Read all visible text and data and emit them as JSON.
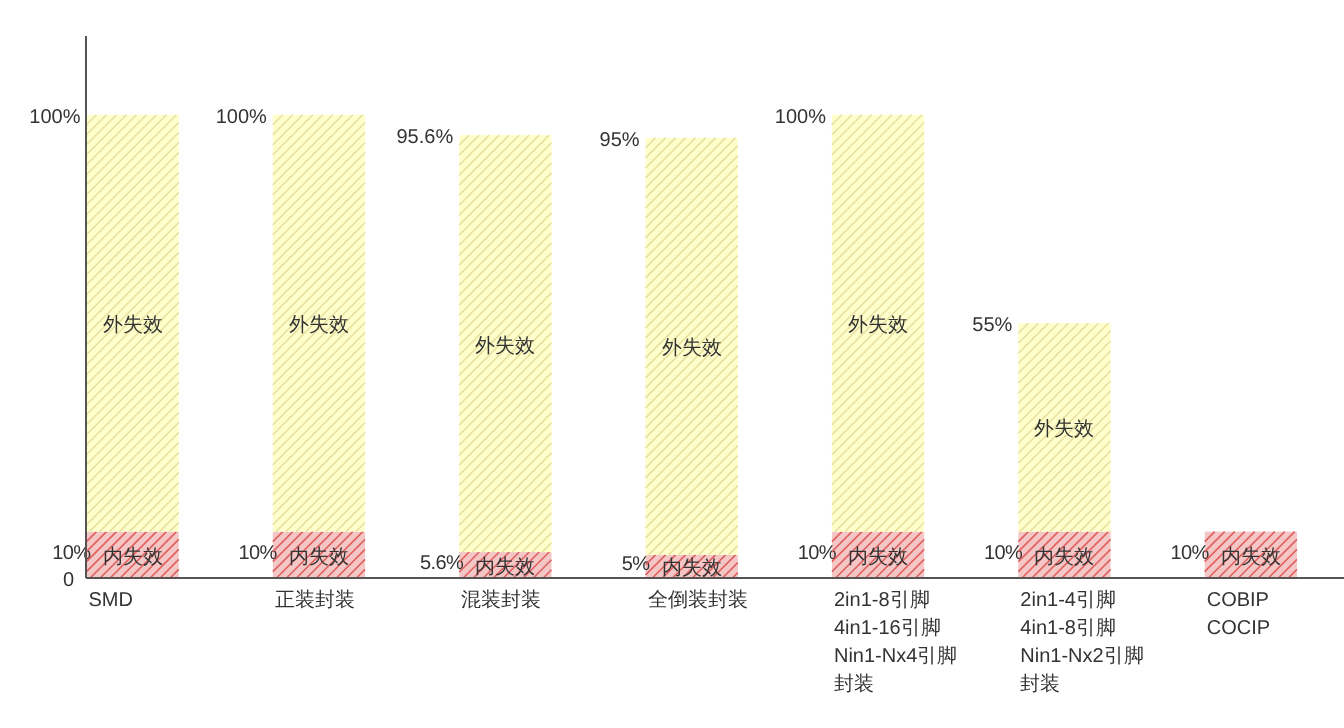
{
  "chart_data": {
    "type": "bar",
    "stacked": true,
    "categories": [
      "SMD",
      "正装封装",
      "混装封装",
      "全倒装封装",
      "2in1-8引脚\n4in1-16引脚\nNin1-Nx4引脚封装",
      "2in1-4引脚\n4in1-8引脚\nNin1-Nx2引脚封装",
      "COBIP\nCOCIP"
    ],
    "series": [
      {
        "name": "内失效",
        "color": "#f4c6c6",
        "values": [
          10,
          10,
          5.6,
          5,
          10,
          10,
          10
        ],
        "value_labels": [
          "10%",
          "10%",
          "5.6%",
          "5%",
          "10%",
          "10%",
          "10%"
        ]
      },
      {
        "name": "外失效",
        "color": "#ffffcc",
        "values": [
          90,
          90,
          90,
          90,
          90,
          45,
          null
        ]
      }
    ],
    "totals": [
      "100%",
      "100%",
      "95.6%",
      "95%",
      "100%",
      "55%",
      null
    ],
    "annotations": [
      "0"
    ]
  }
}
